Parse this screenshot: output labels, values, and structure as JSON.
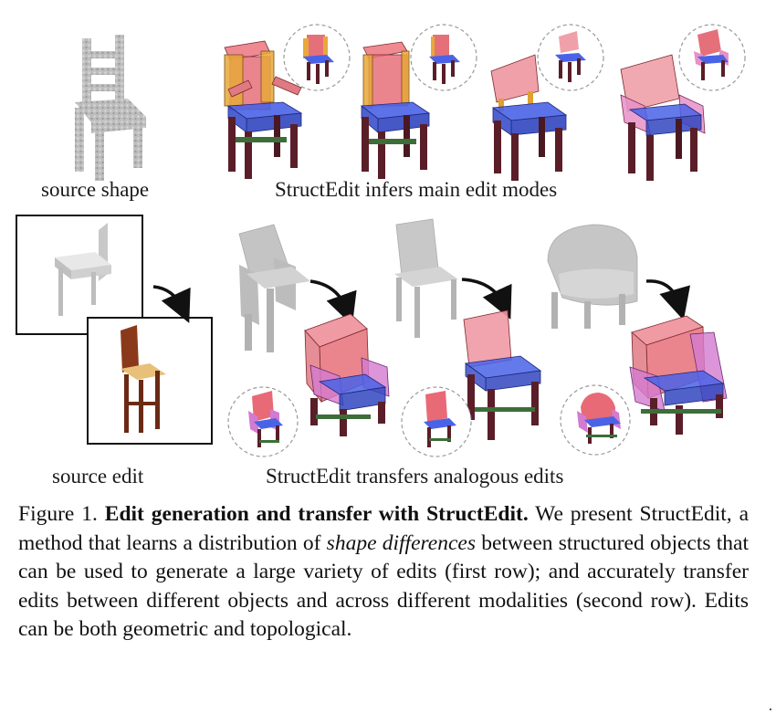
{
  "labels": {
    "source_shape": "source shape",
    "infers": "StructEdit infers main edit modes",
    "source_edit": "source edit",
    "transfers": "StructEdit transfers analogous edits"
  },
  "caption": {
    "figure_number": "Figure 1.",
    "title": "Edit generation and transfer with StructEdit.",
    "text_1": " We present StructEdit, a method that learns a distribution of ",
    "emphasis": "shape differences",
    "text_2": " between structured objects that can be used to generate a large variety of edits (first row); and accurately transfer edits between different objects and across different modalities (second row). Edits can be both geometric and topological."
  },
  "colors": {
    "part_red": "#e0606c",
    "part_blue": "#3f55d6",
    "part_orange": "#e0a030",
    "part_leg": "#5a1e28",
    "part_green": "#3d6e3a",
    "grey_shape": "#b9b9b9"
  }
}
